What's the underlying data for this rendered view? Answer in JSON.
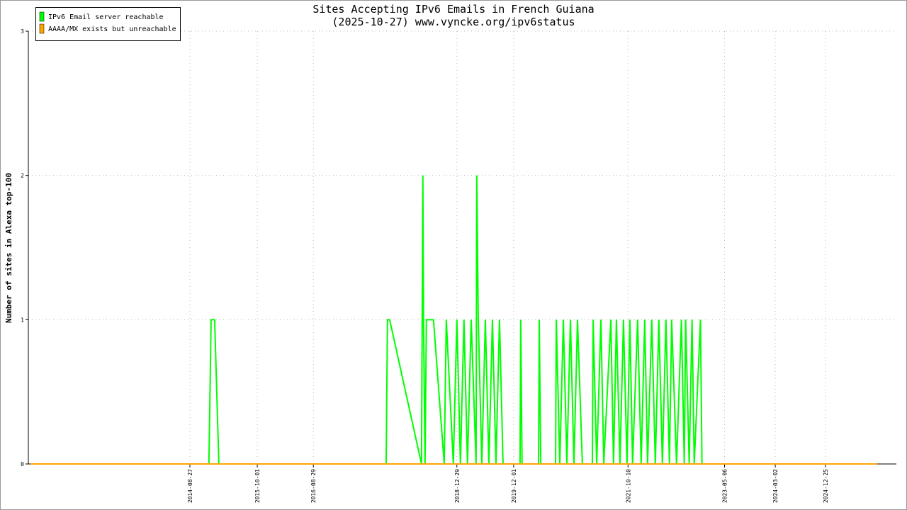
{
  "chart_data": {
    "type": "line",
    "title": "Sites Accepting IPv6 Emails in French Guiana",
    "subtitle": "(2025-10-27) www.vyncke.org/ipv6status",
    "y_label": "Number of sites in Alexa top-100",
    "x": [
      "2012-01-24",
      "2014-12-18",
      "2014-12-31",
      "2015-01-21",
      "2015-02-15",
      "2017-11-04",
      "2017-11-12",
      "2017-11-25",
      "2018-06-02",
      "2018-06-10",
      "2018-06-14",
      "2018-06-23",
      "2018-07-01",
      "2018-08-12",
      "2018-10-15",
      "2018-10-27",
      "2018-12-08",
      "2018-12-29",
      "2019-01-19",
      "2019-02-09",
      "2019-03-02",
      "2019-03-24",
      "2019-04-22",
      "2019-04-26",
      "2019-05-05",
      "2019-05-26",
      "2019-06-16",
      "2019-07-07",
      "2019-07-28",
      "2019-08-18",
      "2019-09-08",
      "2019-09-29",
      "2020-01-08",
      "2020-01-12",
      "2020-01-20",
      "2020-04-27",
      "2020-05-01",
      "2020-05-10",
      "2020-08-06",
      "2020-08-10",
      "2020-08-31",
      "2020-09-21",
      "2020-10-12",
      "2020-11-02",
      "2020-11-23",
      "2020-12-14",
      "2021-01-12",
      "2021-03-12",
      "2021-03-17",
      "2021-04-07",
      "2021-05-02",
      "2021-05-19",
      "2021-06-30",
      "2021-07-16",
      "2021-08-02",
      "2021-08-23",
      "2021-09-13",
      "2021-10-04",
      "2021-10-21",
      "2021-11-06",
      "2021-12-06",
      "2021-12-27",
      "2022-01-17",
      "2022-02-03",
      "2022-02-28",
      "2022-03-21",
      "2022-04-11",
      "2022-05-02",
      "2022-05-23",
      "2022-06-13",
      "2022-06-26",
      "2022-07-25",
      "2022-08-23",
      "2022-09-09",
      "2022-09-17",
      "2022-10-08",
      "2022-10-25",
      "2022-11-07",
      "2022-12-14",
      "2022-12-23",
      "2025-10-27"
    ],
    "series": [
      {
        "name": "IPv6 Email server reachable",
        "color": "#00ff00",
        "values": [
          0,
          0,
          1,
          1,
          0,
          0,
          1,
          1,
          0,
          2,
          1,
          0,
          1,
          1,
          0,
          1,
          0,
          1,
          0,
          1,
          0,
          1,
          0,
          2,
          1,
          0,
          1,
          0,
          1,
          0,
          1,
          0,
          0,
          1,
          0,
          0,
          1,
          0,
          0,
          1,
          0,
          1,
          0,
          1,
          0,
          1,
          0,
          0,
          1,
          0,
          1,
          0,
          1,
          0,
          1,
          0,
          1,
          0,
          1,
          0,
          1,
          0,
          1,
          0,
          1,
          0,
          1,
          0,
          1,
          0,
          1,
          0,
          1,
          0,
          1,
          0,
          1,
          0,
          1,
          0,
          0
        ]
      },
      {
        "name": "AAAA/MX exists but unreachable",
        "color": "#ffa500",
        "values": [
          0,
          0,
          0,
          0,
          0,
          0,
          0,
          0,
          0,
          0,
          0,
          0,
          0,
          0,
          0,
          0,
          0,
          0,
          0,
          0,
          0,
          0,
          0,
          0,
          0,
          0,
          0,
          0,
          0,
          0,
          0,
          0,
          0,
          0,
          0,
          0,
          0,
          0,
          0,
          0,
          0,
          0,
          0,
          0,
          0,
          0,
          0,
          0,
          0,
          0,
          0,
          0,
          0,
          0,
          0,
          0,
          0,
          0,
          0,
          0,
          0,
          0,
          0,
          0,
          0,
          0,
          0,
          0,
          0,
          0,
          0,
          0,
          0,
          0,
          0,
          0,
          0,
          0,
          0,
          0,
          0
        ]
      }
    ],
    "xlim": [
      "2012-01-11",
      "2026-02-19"
    ],
    "xticks": [
      "2014-08-27",
      "2015-10-01",
      "2016-08-29",
      "2018-12-29",
      "2019-12-01",
      "2021-10-10",
      "2023-05-06",
      "2024-03-02",
      "2024-12-25"
    ],
    "ylim": [
      0,
      3
    ],
    "yticks": [
      0,
      1,
      2,
      3
    ],
    "grid": true,
    "legend": "top-left"
  }
}
